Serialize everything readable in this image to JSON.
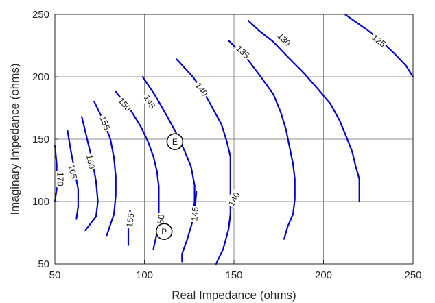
{
  "chart_data": {
    "type": "line",
    "subtype": "contour",
    "xlabel": "Real Impedance (ohms)",
    "ylabel": "Imaginary Impedance (ohms)",
    "xlim": [
      50,
      250
    ],
    "ylim": [
      50,
      250
    ],
    "xticks": [
      "50",
      "100",
      "150",
      "200",
      "250"
    ],
    "yticks": [
      "50",
      "100",
      "150",
      "200",
      "250"
    ],
    "grid": true,
    "line_color": "#0000cc",
    "series": [
      {
        "name": "170",
        "points": [
          [
            50,
            145
          ],
          [
            51,
            130
          ],
          [
            51,
            110
          ],
          [
            50,
            100
          ]
        ],
        "label_at": [
          53,
          118
        ]
      },
      {
        "name": "165",
        "points": [
          [
            57,
            157
          ],
          [
            59,
            140
          ],
          [
            61,
            125
          ],
          [
            63,
            110
          ],
          [
            63,
            96
          ],
          [
            62,
            86
          ]
        ],
        "label_at": [
          60,
          124
        ]
      },
      {
        "name": "160",
        "points": [
          [
            65,
            168
          ],
          [
            68,
            150
          ],
          [
            71,
            132
          ],
          [
            73,
            116
          ],
          [
            74,
            100
          ],
          [
            73,
            88
          ],
          [
            67,
            77
          ]
        ],
        "label_at": [
          70,
          132
        ]
      },
      {
        "name": "155",
        "points": [
          [
            72,
            180
          ],
          [
            77,
            165
          ],
          [
            81,
            150
          ],
          [
            83,
            135
          ],
          [
            84,
            120
          ],
          [
            84,
            105
          ],
          [
            83,
            90
          ],
          [
            79,
            73
          ]
        ],
        "label_at": [
          78,
          163
        ]
      },
      {
        "name": "155",
        "points": [
          [
            92,
            93
          ],
          [
            91,
            80
          ],
          [
            91,
            72
          ],
          [
            91,
            65
          ]
        ],
        "label_at": [
          92,
          85
        ]
      },
      {
        "name": "150",
        "points": [
          [
            84,
            188
          ],
          [
            92,
            174
          ],
          [
            98,
            160
          ],
          [
            102,
            148
          ],
          [
            105,
            136
          ],
          [
            107,
            124
          ],
          [
            108,
            112
          ],
          [
            108,
            100
          ],
          [
            108,
            88
          ],
          [
            107,
            75
          ],
          [
            105,
            62
          ]
        ],
        "label_at": [
          89,
          178
        ]
      },
      {
        "name": "150",
        "points": [
          [
            110,
            88
          ],
          [
            109,
            76
          ]
        ],
        "label_at": [
          109,
          84
        ]
      },
      {
        "name": "145",
        "points": [
          [
            99,
            200
          ],
          [
            106,
            185
          ],
          [
            112,
            170
          ],
          [
            117,
            157
          ],
          [
            122,
            142
          ],
          [
            126,
            128
          ],
          [
            128,
            113
          ],
          [
            128,
            100
          ],
          [
            127,
            85
          ],
          [
            124,
            70
          ],
          [
            121,
            58
          ],
          [
            121,
            52
          ]
        ],
        "label_at": [
          103,
          180
        ]
      },
      {
        "name": "145",
        "points": [
          [
            129,
            108
          ],
          [
            128,
            90
          ]
        ],
        "label_at": [
          128,
          90
        ]
      },
      {
        "name": "140",
        "points": [
          [
            118,
            214
          ],
          [
            127,
            200
          ],
          [
            133,
            188
          ],
          [
            138,
            175
          ],
          [
            143,
            162
          ],
          [
            146,
            148
          ],
          [
            148,
            136
          ],
          [
            148,
            120
          ],
          [
            148,
            106
          ],
          [
            148,
            90
          ],
          [
            147,
            78
          ],
          [
            144,
            62
          ],
          [
            140,
            50
          ]
        ],
        "label_at": [
          132,
          190
        ]
      },
      {
        "name": "140",
        "points": [
          [
            152,
            103
          ],
          [
            149,
            95
          ]
        ],
        "label_at": [
          150,
          102
        ]
      },
      {
        "name": "135",
        "points": [
          [
            147,
            229
          ],
          [
            157,
            215
          ],
          [
            165,
            200
          ],
          [
            172,
            186
          ],
          [
            176,
            172
          ],
          [
            179,
            158
          ],
          [
            181,
            144
          ],
          [
            183,
            130
          ],
          [
            184,
            118
          ],
          [
            184,
            102
          ],
          [
            183,
            90
          ],
          [
            180,
            80
          ],
          [
            178,
            70
          ]
        ],
        "label_at": [
          155,
          220
        ]
      },
      {
        "name": "130",
        "points": [
          [
            158,
            245
          ],
          [
            164,
            237
          ],
          [
            172,
            228
          ],
          [
            180,
            216
          ],
          [
            189,
            203
          ],
          [
            197,
            190
          ],
          [
            204,
            178
          ],
          [
            209,
            165
          ],
          [
            213,
            151
          ],
          [
            216,
            140
          ],
          [
            218,
            128
          ],
          [
            220,
            118
          ],
          [
            220,
            110
          ],
          [
            220,
            100
          ]
        ],
        "label_at": [
          178,
          230
        ]
      },
      {
        "name": "125",
        "points": [
          [
            212,
            250
          ],
          [
            224,
            238
          ],
          [
            232,
            229
          ],
          [
            240,
            218
          ],
          [
            246,
            209
          ],
          [
            250,
            200
          ]
        ],
        "label_at": [
          231,
          229
        ]
      }
    ],
    "markers": [
      {
        "label": "E",
        "x": 117,
        "y": 148
      },
      {
        "label": "P",
        "x": 111,
        "y": 76
      }
    ]
  }
}
